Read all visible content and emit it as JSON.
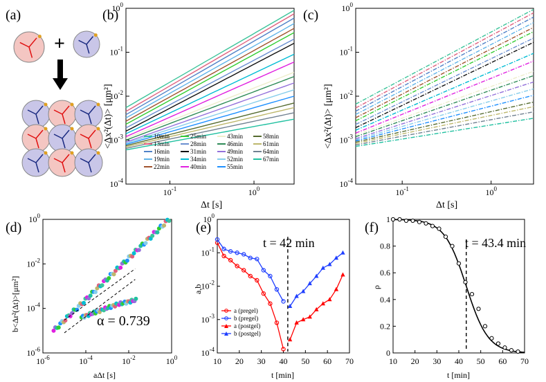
{
  "panels": {
    "a": {
      "label": "(a)",
      "plus": "+"
    },
    "b": {
      "label": "(b)"
    },
    "c": {
      "label": "(c)"
    },
    "d": {
      "label": "(d)"
    },
    "e": {
      "label": "(e)"
    },
    "f": {
      "label": "(f)"
    }
  },
  "colors": {
    "a_series": "#ff0000",
    "b_series": "#1f3fff",
    "fit_curve": "#000000"
  },
  "chart_data": [
    {
      "id": "b",
      "type": "line",
      "xlabel": "Δt [s]",
      "ylabel": "<Δx²(Δt)> [μm²]",
      "xscale": "log",
      "yscale": "log",
      "xlim": [
        0.03,
        3
      ],
      "ylim": [
        0.0001,
        1
      ],
      "xticks": [
        "10^-1",
        "10^0"
      ],
      "yticks": [
        "10^-4",
        "10^-3",
        "10^-2",
        "10^-1",
        "10^0"
      ],
      "legend_position": "bottom-right",
      "series": [
        {
          "name": "10min",
          "color": "#3bc49a",
          "y_start": 0.0055,
          "y_end": 0.9
        },
        {
          "name": "13min",
          "color": "#e0607e",
          "y_start": 0.0045,
          "y_end": 0.75
        },
        {
          "name": "16min",
          "color": "#4f81c7",
          "y_start": 0.0038,
          "y_end": 0.6
        },
        {
          "name": "19min",
          "color": "#5fb3e8",
          "y_start": 0.0032,
          "y_end": 0.45
        },
        {
          "name": "22min",
          "color": "#a0522d",
          "y_start": 0.0027,
          "y_end": 0.35
        },
        {
          "name": "25min",
          "color": "#32cd32",
          "y_start": 0.0023,
          "y_end": 0.28
        },
        {
          "name": "28min",
          "color": "#6a8fd0",
          "y_start": 0.0019,
          "y_end": 0.2
        },
        {
          "name": "31min",
          "color": "#111111",
          "y_start": 0.0016,
          "y_end": 0.16
        },
        {
          "name": "34min",
          "color": "#00bcd4",
          "y_start": 0.0014,
          "y_end": 0.09
        },
        {
          "name": "40min",
          "color": "#e020e0",
          "y_start": 0.0012,
          "y_end": 0.06
        },
        {
          "name": "43min",
          "color": "#eeeecc",
          "y_start": 0.0011,
          "y_end": 0.035
        },
        {
          "name": "46min",
          "color": "#2e8b57",
          "y_start": 0.001,
          "y_end": 0.028
        },
        {
          "name": "49min",
          "color": "#9370db",
          "y_start": 0.0009,
          "y_end": 0.02
        },
        {
          "name": "52min",
          "color": "#87ceeb",
          "y_start": 0.00085,
          "y_end": 0.014
        },
        {
          "name": "55min",
          "color": "#1e90ff",
          "y_start": 0.0008,
          "y_end": 0.01
        },
        {
          "name": "58min",
          "color": "#556b2f",
          "y_start": 0.00075,
          "y_end": 0.007
        },
        {
          "name": "61min",
          "color": "#bdb76b",
          "y_start": 0.0007,
          "y_end": 0.0055
        },
        {
          "name": "64min",
          "color": "#708090",
          "y_start": 0.00065,
          "y_end": 0.0042
        },
        {
          "name": "67min",
          "color": "#20c0a0",
          "y_start": 0.0006,
          "y_end": 0.003
        }
      ]
    },
    {
      "id": "c",
      "type": "line",
      "xlabel": "Δt [s]",
      "ylabel": "<Δx²(Δt)> [μm²]",
      "xscale": "log",
      "yscale": "log",
      "xlim": [
        0.03,
        3
      ],
      "ylim": [
        0.0001,
        1
      ],
      "xticks": [
        "10^-1",
        "10^0"
      ],
      "yticks": [
        "10^-4",
        "10^-3",
        "10^-2",
        "10^-1",
        "10^0"
      ],
      "line_style": "dash-dot"
    },
    {
      "id": "d",
      "type": "scatter",
      "xlabel": "aΔt [s]",
      "ylabel": "b<Δr²(Δt)>[μm²]",
      "xscale": "log",
      "yscale": "log",
      "xlim": [
        1e-06,
        1
      ],
      "ylim": [
        1e-06,
        1
      ],
      "xticks": [
        "10^-6",
        "10^-4",
        "10^-2",
        "10^0"
      ],
      "yticks": [
        "10^-6",
        "10^-4",
        "10^-2",
        "10^0"
      ],
      "annotation": "α = 0.739"
    },
    {
      "id": "e",
      "type": "line",
      "xlabel": "t [min]",
      "ylabel": "a,b",
      "yscale": "log",
      "xlim": [
        10,
        70
      ],
      "ylim": [
        0.0001,
        1
      ],
      "xticks": [
        "10",
        "20",
        "30",
        "40",
        "50",
        "60",
        "70"
      ],
      "yticks": [
        "10^-4",
        "10^-3",
        "10^-2",
        "10^-1",
        "10^0"
      ],
      "annotation": "t = 42 min",
      "legend_position": "bottom-left",
      "series": [
        {
          "name": "a (pregel)",
          "color": "#ff0000",
          "marker": "circle",
          "x": [
            10,
            13,
            16,
            19,
            22,
            25,
            28,
            31,
            34,
            37,
            40
          ],
          "y": [
            0.2,
            0.08,
            0.06,
            0.04,
            0.03,
            0.02,
            0.015,
            0.006,
            0.003,
            0.0008,
            0.00013
          ]
        },
        {
          "name": "b (pregel)",
          "color": "#1f3fff",
          "marker": "circle",
          "x": [
            10,
            13,
            16,
            19,
            22,
            25,
            28,
            31,
            34,
            37,
            40
          ],
          "y": [
            0.25,
            0.13,
            0.11,
            0.1,
            0.09,
            0.07,
            0.065,
            0.03,
            0.02,
            0.008,
            0.0035
          ]
        },
        {
          "name": "a (postgel)",
          "color": "#ff0000",
          "marker": "triangle",
          "x": [
            43,
            46,
            49,
            52,
            55,
            58,
            61,
            64,
            67
          ],
          "y": [
            0.00025,
            0.0008,
            0.001,
            0.0012,
            0.002,
            0.003,
            0.004,
            0.008,
            0.022
          ]
        },
        {
          "name": "b (postgel)",
          "color": "#1f3fff",
          "marker": "triangle",
          "x": [
            43,
            46,
            49,
            52,
            55,
            58,
            61,
            64,
            67
          ],
          "y": [
            0.0025,
            0.005,
            0.007,
            0.012,
            0.02,
            0.035,
            0.045,
            0.07,
            0.1
          ]
        }
      ]
    },
    {
      "id": "f",
      "type": "line",
      "xlabel": "t [min]",
      "ylabel": "ρ",
      "xlim": [
        10,
        70
      ],
      "ylim": [
        0,
        1
      ],
      "xticks": [
        "10",
        "20",
        "30",
        "40",
        "50",
        "60",
        "70"
      ],
      "yticks": [
        "0",
        "0.2",
        "0.4",
        "0.6",
        "0.8",
        "1"
      ],
      "annotation": "t = 43.4 min",
      "points": {
        "x": [
          10,
          13,
          16,
          19,
          22,
          25,
          28,
          31,
          34,
          37,
          40,
          43,
          46,
          49,
          52,
          55,
          58,
          61,
          64,
          67
        ],
        "y": [
          1.0,
          1.0,
          0.99,
          0.99,
          0.98,
          0.97,
          0.95,
          0.93,
          0.87,
          0.8,
          0.67,
          0.53,
          0.44,
          0.33,
          0.2,
          0.11,
          0.07,
          0.04,
          0.02,
          0.01
        ]
      }
    }
  ],
  "labels": {
    "b_xlabel": "Δt [s]",
    "b_ylabel": "<Δx²(Δt)> [μm²]",
    "c_xlabel": "Δt [s]",
    "c_ylabel": "<Δx²(Δt)> [μm²]",
    "d_xlabel": "aΔt [s]",
    "d_ylabel": "b<Δr²(Δt)>[μm²]",
    "d_annot": "α = 0.739",
    "e_xlabel": "t [min]",
    "e_ylabel": "a,b",
    "e_annot": "t = 42 min",
    "f_xlabel": "t [min]",
    "f_ylabel": "ρ",
    "f_annot": "t = 43.4 min"
  }
}
